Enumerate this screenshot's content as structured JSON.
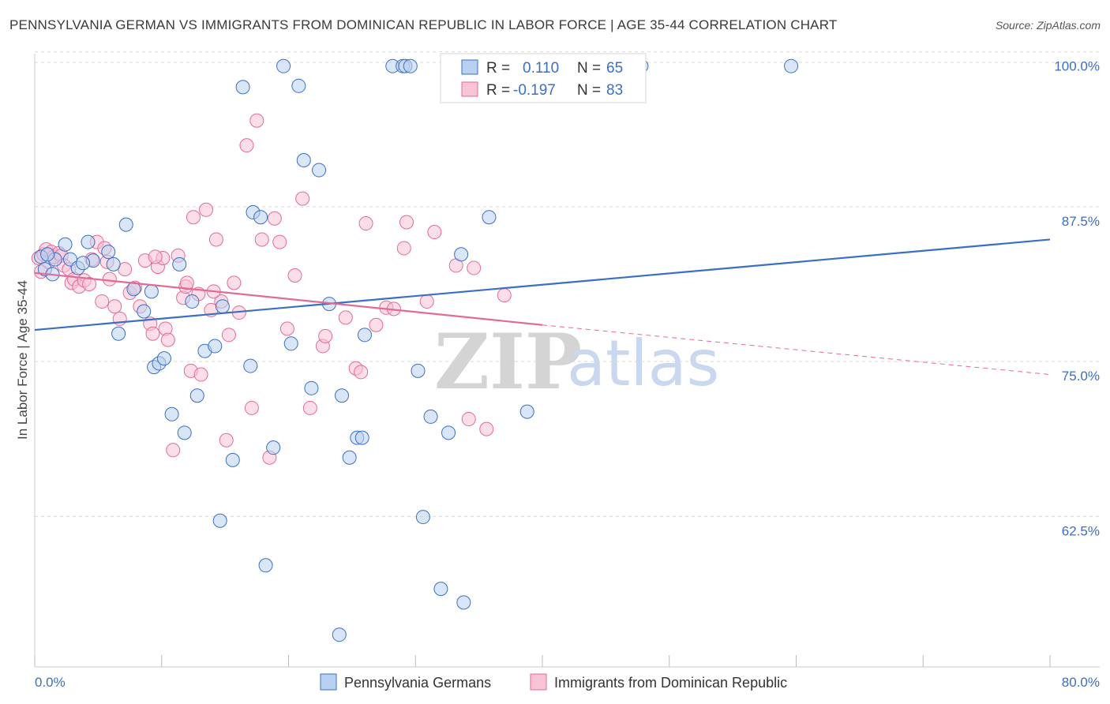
{
  "header": {
    "title": "PENNSYLVANIA GERMAN VS IMMIGRANTS FROM DOMINICAN REPUBLIC IN LABOR FORCE | AGE 35-44 CORRELATION CHART",
    "source": "Source: ZipAtlas.com"
  },
  "legend": {
    "r_label": "R =",
    "n_label": "N =",
    "series1": {
      "r": "0.110",
      "n": "65"
    },
    "series2": {
      "r": "-0.197",
      "n": "83"
    }
  },
  "watermark": {
    "zip": "ZIP",
    "atlas": "atlas"
  },
  "colors": {
    "blue": "#3a6fc4",
    "blue_fill": "#b9d1f0",
    "pink": "#e46a96",
    "pink_fill": "#f7c3d5"
  },
  "chart_data": {
    "type": "scatter",
    "title": "PENNSYLVANIA GERMAN VS IMMIGRANTS FROM DOMINICAN REPUBLIC IN LABOR FORCE | AGE 35-44 CORRELATION CHART",
    "xlabel": "",
    "ylabel": "In Labor Force | Age 35-44",
    "xlim": [
      0,
      80
    ],
    "ylim": [
      51.5,
      101
    ],
    "x_tick_labels": [
      "0.0%",
      "80.0%"
    ],
    "y_ticks": [
      62.5,
      75.0,
      87.5,
      100.0
    ],
    "y_tick_labels": [
      "62.5%",
      "75.0%",
      "87.5%",
      "100.0%"
    ],
    "series": [
      {
        "name": "Pennsylvania Germans",
        "r": 0.11,
        "n": 65,
        "trend": {
          "x0": 0,
          "y0": 78.7,
          "x1": 80,
          "y1": 86.0
        },
        "points": [
          [
            0.5,
            84.6
          ],
          [
            0.8,
            83.6
          ],
          [
            1.4,
            83.2
          ],
          [
            1.6,
            84.4
          ],
          [
            2.4,
            85.6
          ],
          [
            2.8,
            84.4
          ],
          [
            3.4,
            83.7
          ],
          [
            4.2,
            85.8
          ],
          [
            4.6,
            84.3
          ],
          [
            5.8,
            85.0
          ],
          [
            6.2,
            84.0
          ],
          [
            6.6,
            78.4
          ],
          [
            7.2,
            87.2
          ],
          [
            7.8,
            82.0
          ],
          [
            8.6,
            80.2
          ],
          [
            9.2,
            81.8
          ],
          [
            9.4,
            75.7
          ],
          [
            9.8,
            76.0
          ],
          [
            10.2,
            76.4
          ],
          [
            10.8,
            71.9
          ],
          [
            11.4,
            84.0
          ],
          [
            11.8,
            70.4
          ],
          [
            12.4,
            81.0
          ],
          [
            12.8,
            73.4
          ],
          [
            13.4,
            77.0
          ],
          [
            14.2,
            77.4
          ],
          [
            14.6,
            63.3
          ],
          [
            14.8,
            80.6
          ],
          [
            15.6,
            68.2
          ],
          [
            16.4,
            98.3
          ],
          [
            17.0,
            75.8
          ],
          [
            17.2,
            88.2
          ],
          [
            17.8,
            87.8
          ],
          [
            18.2,
            59.7
          ],
          [
            18.8,
            69.2
          ],
          [
            19.6,
            100.0
          ],
          [
            20.2,
            77.6
          ],
          [
            20.8,
            98.4
          ],
          [
            21.2,
            92.4
          ],
          [
            21.8,
            74.0
          ],
          [
            22.4,
            91.6
          ],
          [
            23.2,
            80.8
          ],
          [
            24.0,
            54.1
          ],
          [
            24.2,
            73.4
          ],
          [
            24.8,
            68.4
          ],
          [
            25.4,
            70.0
          ],
          [
            25.8,
            70.0
          ],
          [
            26.0,
            78.3
          ],
          [
            28.2,
            100.0
          ],
          [
            29.0,
            100.0
          ],
          [
            29.2,
            100.0
          ],
          [
            29.6,
            100.0
          ],
          [
            30.2,
            75.4
          ],
          [
            30.6,
            63.6
          ],
          [
            31.2,
            71.7
          ],
          [
            32.0,
            57.8
          ],
          [
            32.6,
            70.4
          ],
          [
            33.8,
            56.7
          ],
          [
            33.6,
            84.8
          ],
          [
            35.8,
            87.8
          ],
          [
            38.8,
            72.1
          ],
          [
            47.8,
            100.0
          ],
          [
            59.6,
            100.0
          ],
          [
            1.0,
            84.8
          ],
          [
            3.8,
            84.1
          ]
        ]
      },
      {
        "name": "Immigrants from Dominican Republic",
        "r": -0.197,
        "n": 83,
        "trend": {
          "x0": 0,
          "y0": 83.3,
          "x1": 40,
          "y1": 79.1,
          "dashed_to": {
            "x": 80,
            "y": 75.1
          }
        },
        "points": [
          [
            0.3,
            84.5
          ],
          [
            0.5,
            83.4
          ],
          [
            0.7,
            84.8
          ],
          [
            0.9,
            85.2
          ],
          [
            1.1,
            84.2
          ],
          [
            1.3,
            85.0
          ],
          [
            1.5,
            84.6
          ],
          [
            1.9,
            84.9
          ],
          [
            2.1,
            84.7
          ],
          [
            2.3,
            83.9
          ],
          [
            2.7,
            83.6
          ],
          [
            2.9,
            82.5
          ],
          [
            3.1,
            82.8
          ],
          [
            3.5,
            82.2
          ],
          [
            3.9,
            82.7
          ],
          [
            4.3,
            82.4
          ],
          [
            4.5,
            84.4
          ],
          [
            4.9,
            85.8
          ],
          [
            5.3,
            81.0
          ],
          [
            5.5,
            85.3
          ],
          [
            5.9,
            82.8
          ],
          [
            6.3,
            80.6
          ],
          [
            6.7,
            79.6
          ],
          [
            7.1,
            83.6
          ],
          [
            7.5,
            81.7
          ],
          [
            7.9,
            82.1
          ],
          [
            8.3,
            80.6
          ],
          [
            8.7,
            84.3
          ],
          [
            9.1,
            79.2
          ],
          [
            9.3,
            78.4
          ],
          [
            9.7,
            83.8
          ],
          [
            10.1,
            84.5
          ],
          [
            10.3,
            78.8
          ],
          [
            10.5,
            77.9
          ],
          [
            10.9,
            69.0
          ],
          [
            11.3,
            84.7
          ],
          [
            11.7,
            81.3
          ],
          [
            11.9,
            82.2
          ],
          [
            12.3,
            75.4
          ],
          [
            12.5,
            87.8
          ],
          [
            12.9,
            81.6
          ],
          [
            13.1,
            75.1
          ],
          [
            13.5,
            88.4
          ],
          [
            13.9,
            80.3
          ],
          [
            14.3,
            86.0
          ],
          [
            14.7,
            81.0
          ],
          [
            15.1,
            69.8
          ],
          [
            15.3,
            78.3
          ],
          [
            15.7,
            82.5
          ],
          [
            16.1,
            80.1
          ],
          [
            16.7,
            93.6
          ],
          [
            17.1,
            72.4
          ],
          [
            17.5,
            95.6
          ],
          [
            17.9,
            86.0
          ],
          [
            18.5,
            68.4
          ],
          [
            18.9,
            87.7
          ],
          [
            19.3,
            85.8
          ],
          [
            19.9,
            78.8
          ],
          [
            20.5,
            83.1
          ],
          [
            21.1,
            89.3
          ],
          [
            21.7,
            72.4
          ],
          [
            22.7,
            77.4
          ],
          [
            22.9,
            78.2
          ],
          [
            24.5,
            79.7
          ],
          [
            25.3,
            75.6
          ],
          [
            25.7,
            75.3
          ],
          [
            26.1,
            87.3
          ],
          [
            26.9,
            79.1
          ],
          [
            27.7,
            80.5
          ],
          [
            28.3,
            80.4
          ],
          [
            29.1,
            85.3
          ],
          [
            29.3,
            87.4
          ],
          [
            30.9,
            81.0
          ],
          [
            31.5,
            86.6
          ],
          [
            33.2,
            83.9
          ],
          [
            34.2,
            71.5
          ],
          [
            34.6,
            83.7
          ],
          [
            35.6,
            70.7
          ],
          [
            37.0,
            81.5
          ],
          [
            12.0,
            82.5
          ],
          [
            9.5,
            84.6
          ],
          [
            5.7,
            84.2
          ],
          [
            14.1,
            81.8
          ]
        ]
      }
    ]
  },
  "bottom_legend": {
    "series1": "Pennsylvania Germans",
    "series2": "Immigrants from Dominican Republic"
  }
}
